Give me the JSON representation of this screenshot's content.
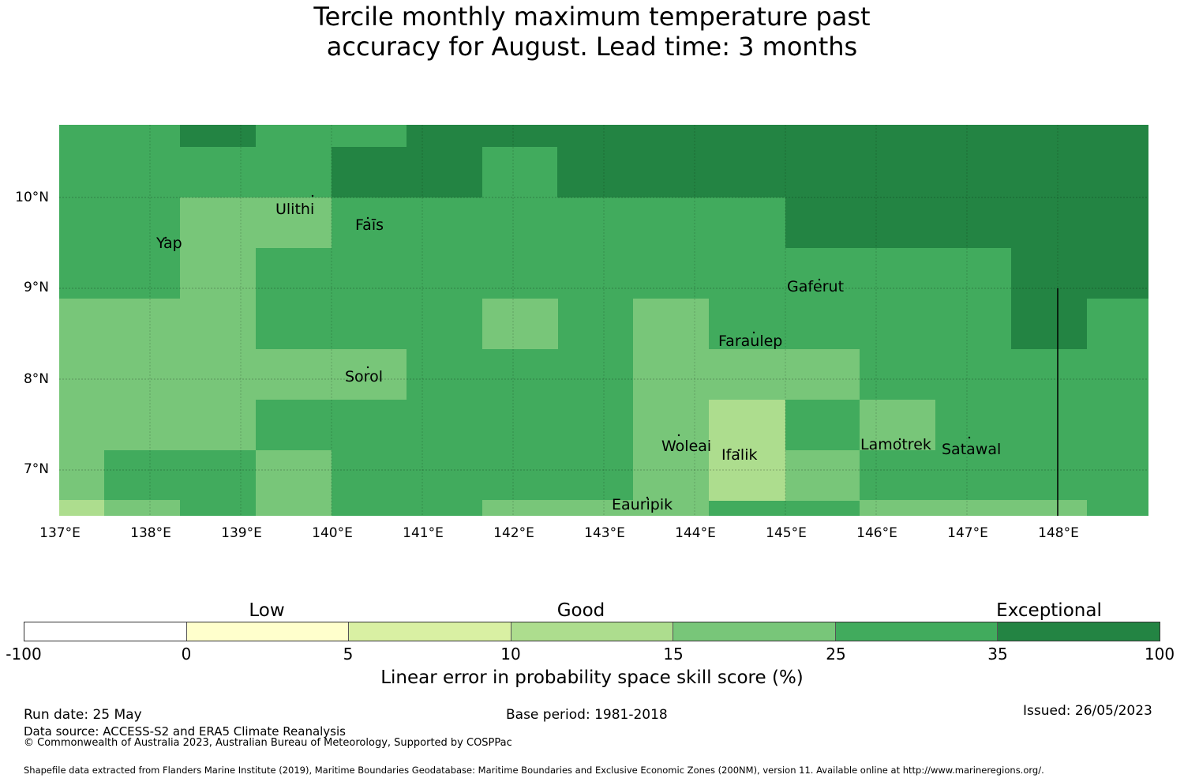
{
  "title": {
    "line1": "Tercile monthly maximum temperature past",
    "line2": "accuracy for August. Lead time: 3 months"
  },
  "map": {
    "lat_ticks": [
      "10°N",
      "9°N",
      "8°N",
      "7°N"
    ],
    "lon_ticks": [
      "137°E",
      "138°E",
      "139°E",
      "140°E",
      "141°E",
      "142°E",
      "143°E",
      "144°E",
      "145°E",
      "146°E",
      "147°E",
      "148°E"
    ],
    "places": [
      "Ulithi",
      "Faīs",
      "Yap",
      "Gaferut",
      "Faraulep",
      "Sorol",
      "Woleai",
      "Ifalik",
      "Lamotrek",
      "Satawal",
      "Eauripik"
    ],
    "category_colors": {
      "c10": "#addd8e",
      "c15": "#78c679",
      "c25": "#41ab5d",
      "c35": "#238443"
    }
  },
  "colorbar": {
    "categories": [
      "Low",
      "Good",
      "Exceptional"
    ],
    "ticks": [
      "-100",
      "0",
      "5",
      "10",
      "15",
      "25",
      "35",
      "100"
    ],
    "colors": [
      "#ffffff",
      "#ffffcc",
      "#d9f0a3",
      "#addd8e",
      "#78c679",
      "#41ab5d",
      "#238443"
    ],
    "label": "Linear error in probability space skill score (%)"
  },
  "footer": {
    "run_date": "Run date: 25 May",
    "base_period": "Base period: 1981-2018",
    "issued": "Issued: 26/05/2023",
    "data_source": "Data source: ACCESS-S2 and ERA5 Climate Reanalysis",
    "copyright": "© Commonwealth of Australia 2023, Australian Bureau of Meteorology, Supported by COSPPac",
    "shapefile": "Shapefile data extracted from Flanders Marine Institute (2019), Maritime Boundaries Geodatabase: Maritime Boundaries and Exclusive Economic Zones (200NM), version 11. Available online at http://www.marineregions.org/."
  }
}
